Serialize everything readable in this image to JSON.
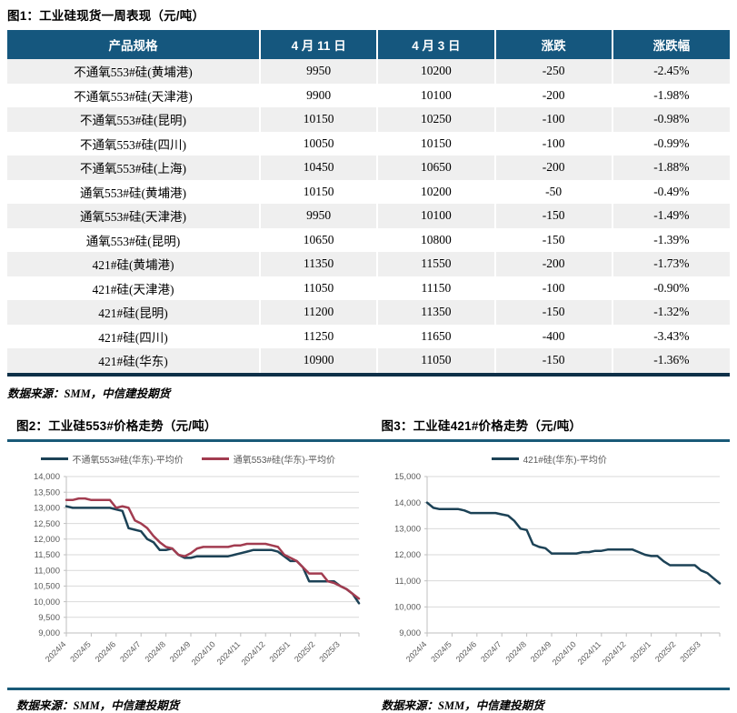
{
  "colors": {
    "table_header_bg": "#15577E",
    "table_header_text": "#FFFFFF",
    "table_row_alt": "#EFEFEF",
    "table_bottom_border": "#0E3048",
    "section_divider": "#1A5A78",
    "series_blue": "#1C4256",
    "series_red": "#A23C50",
    "gridline": "#D9D9D9",
    "axis_line": "#BFBFBF",
    "axis_text": "#595959"
  },
  "fig1": {
    "title": "图1：工业硅现货一周表现（元/吨）",
    "source": "数据来源：SMM，中信建投期货",
    "table": {
      "headers": [
        "产品规格",
        "4 月 11 日",
        "4 月 3 日",
        "涨跌",
        "涨跌幅"
      ],
      "rows": [
        [
          "不通氧553#硅(黄埔港)",
          "9950",
          "10200",
          "-250",
          "-2.45%"
        ],
        [
          "不通氧553#硅(天津港)",
          "9900",
          "10100",
          "-200",
          "-1.98%"
        ],
        [
          "不通氧553#硅(昆明)",
          "10150",
          "10250",
          "-100",
          "-0.98%"
        ],
        [
          "不通氧553#硅(四川)",
          "10050",
          "10150",
          "-100",
          "-0.99%"
        ],
        [
          "不通氧553#硅(上海)",
          "10450",
          "10650",
          "-200",
          "-1.88%"
        ],
        [
          "通氧553#硅(黄埔港)",
          "10150",
          "10200",
          "-50",
          "-0.49%"
        ],
        [
          "通氧553#硅(天津港)",
          "9950",
          "10100",
          "-150",
          "-1.49%"
        ],
        [
          "通氧553#硅(昆明)",
          "10650",
          "10800",
          "-150",
          "-1.39%"
        ],
        [
          "421#硅(黄埔港)",
          "11350",
          "11550",
          "-200",
          "-1.73%"
        ],
        [
          "421#硅(天津港)",
          "11050",
          "11150",
          "-100",
          "-0.90%"
        ],
        [
          "421#硅(昆明)",
          "11200",
          "11350",
          "-150",
          "-1.32%"
        ],
        [
          "421#硅(四川)",
          "11250",
          "11650",
          "-400",
          "-3.43%"
        ],
        [
          "421#硅(华东)",
          "10900",
          "11050",
          "-150",
          "-1.36%"
        ]
      ]
    }
  },
  "fig2": {
    "title": "图2：工业硅553#价格走势（元/吨）",
    "source": "数据来源：SMM，中信建投期货"
  },
  "fig3": {
    "title": "图3：工业硅421#价格走势（元/吨）",
    "source": "数据来源：SMM，中信建投期货"
  },
  "chart_data": [
    {
      "type": "line",
      "title": "图2：工业硅553#价格走势（元/吨）",
      "xlabel": "",
      "ylabel": "",
      "x_tick_labels": [
        "2024/4",
        "2024/5",
        "2024/6",
        "2024/7",
        "2024/8",
        "2024/9",
        "2024/10",
        "2024/11",
        "2024/12",
        "2025/1",
        "2025/2",
        "2025/3"
      ],
      "ylim": [
        9000,
        14000
      ],
      "ytick_step": 500,
      "grid": "horizontal",
      "legend_position": "top",
      "series": [
        {
          "name": "不通氧553#硅(华东)-平均价",
          "color": "#1C4256",
          "values": [
            13050,
            13000,
            13000,
            13000,
            13000,
            13000,
            13000,
            13000,
            12950,
            12900,
            12350,
            12300,
            12250,
            12000,
            11900,
            11650,
            11650,
            11700,
            11500,
            11400,
            11400,
            11450,
            11450,
            11450,
            11450,
            11450,
            11450,
            11500,
            11550,
            11600,
            11650,
            11650,
            11650,
            11650,
            11600,
            11450,
            11300,
            11300,
            11100,
            10650,
            10650,
            10650,
            10650,
            10650,
            10500,
            10400,
            10250,
            9950
          ]
        },
        {
          "name": "通氧553#硅(华东)-平均价",
          "color": "#A23C50",
          "values": [
            13250,
            13250,
            13300,
            13300,
            13250,
            13250,
            13250,
            13250,
            13000,
            13050,
            13000,
            12600,
            12500,
            12350,
            12100,
            11900,
            11750,
            11700,
            11500,
            11450,
            11550,
            11700,
            11750,
            11750,
            11750,
            11750,
            11750,
            11800,
            11800,
            11850,
            11850,
            11850,
            11850,
            11800,
            11750,
            11500,
            11400,
            11300,
            11100,
            10900,
            10900,
            10900,
            10650,
            10600,
            10500,
            10400,
            10250,
            10100
          ]
        }
      ]
    },
    {
      "type": "line",
      "title": "图3：工业硅421#价格走势（元/吨）",
      "xlabel": "",
      "ylabel": "",
      "x_tick_labels": [
        "2024/4",
        "2024/5",
        "2024/6",
        "2024/7",
        "2024/8",
        "2024/9",
        "2024/10",
        "2024/11",
        "2024/12",
        "2025/1",
        "2025/2",
        "2025/3"
      ],
      "ylim": [
        9000,
        15000
      ],
      "ytick_step": 1000,
      "grid": "horizontal",
      "legend_position": "top",
      "series": [
        {
          "name": "421#硅(华东)-平均价",
          "color": "#1C4256",
          "values": [
            14000,
            13800,
            13750,
            13750,
            13750,
            13750,
            13700,
            13600,
            13600,
            13600,
            13600,
            13600,
            13550,
            13500,
            13300,
            13000,
            12950,
            12400,
            12300,
            12250,
            12050,
            12050,
            12050,
            12050,
            12050,
            12100,
            12100,
            12150,
            12150,
            12200,
            12200,
            12200,
            12200,
            12200,
            12100,
            12000,
            11950,
            11950,
            11750,
            11600,
            11600,
            11600,
            11600,
            11600,
            11400,
            11300,
            11100,
            10900
          ]
        }
      ]
    }
  ]
}
